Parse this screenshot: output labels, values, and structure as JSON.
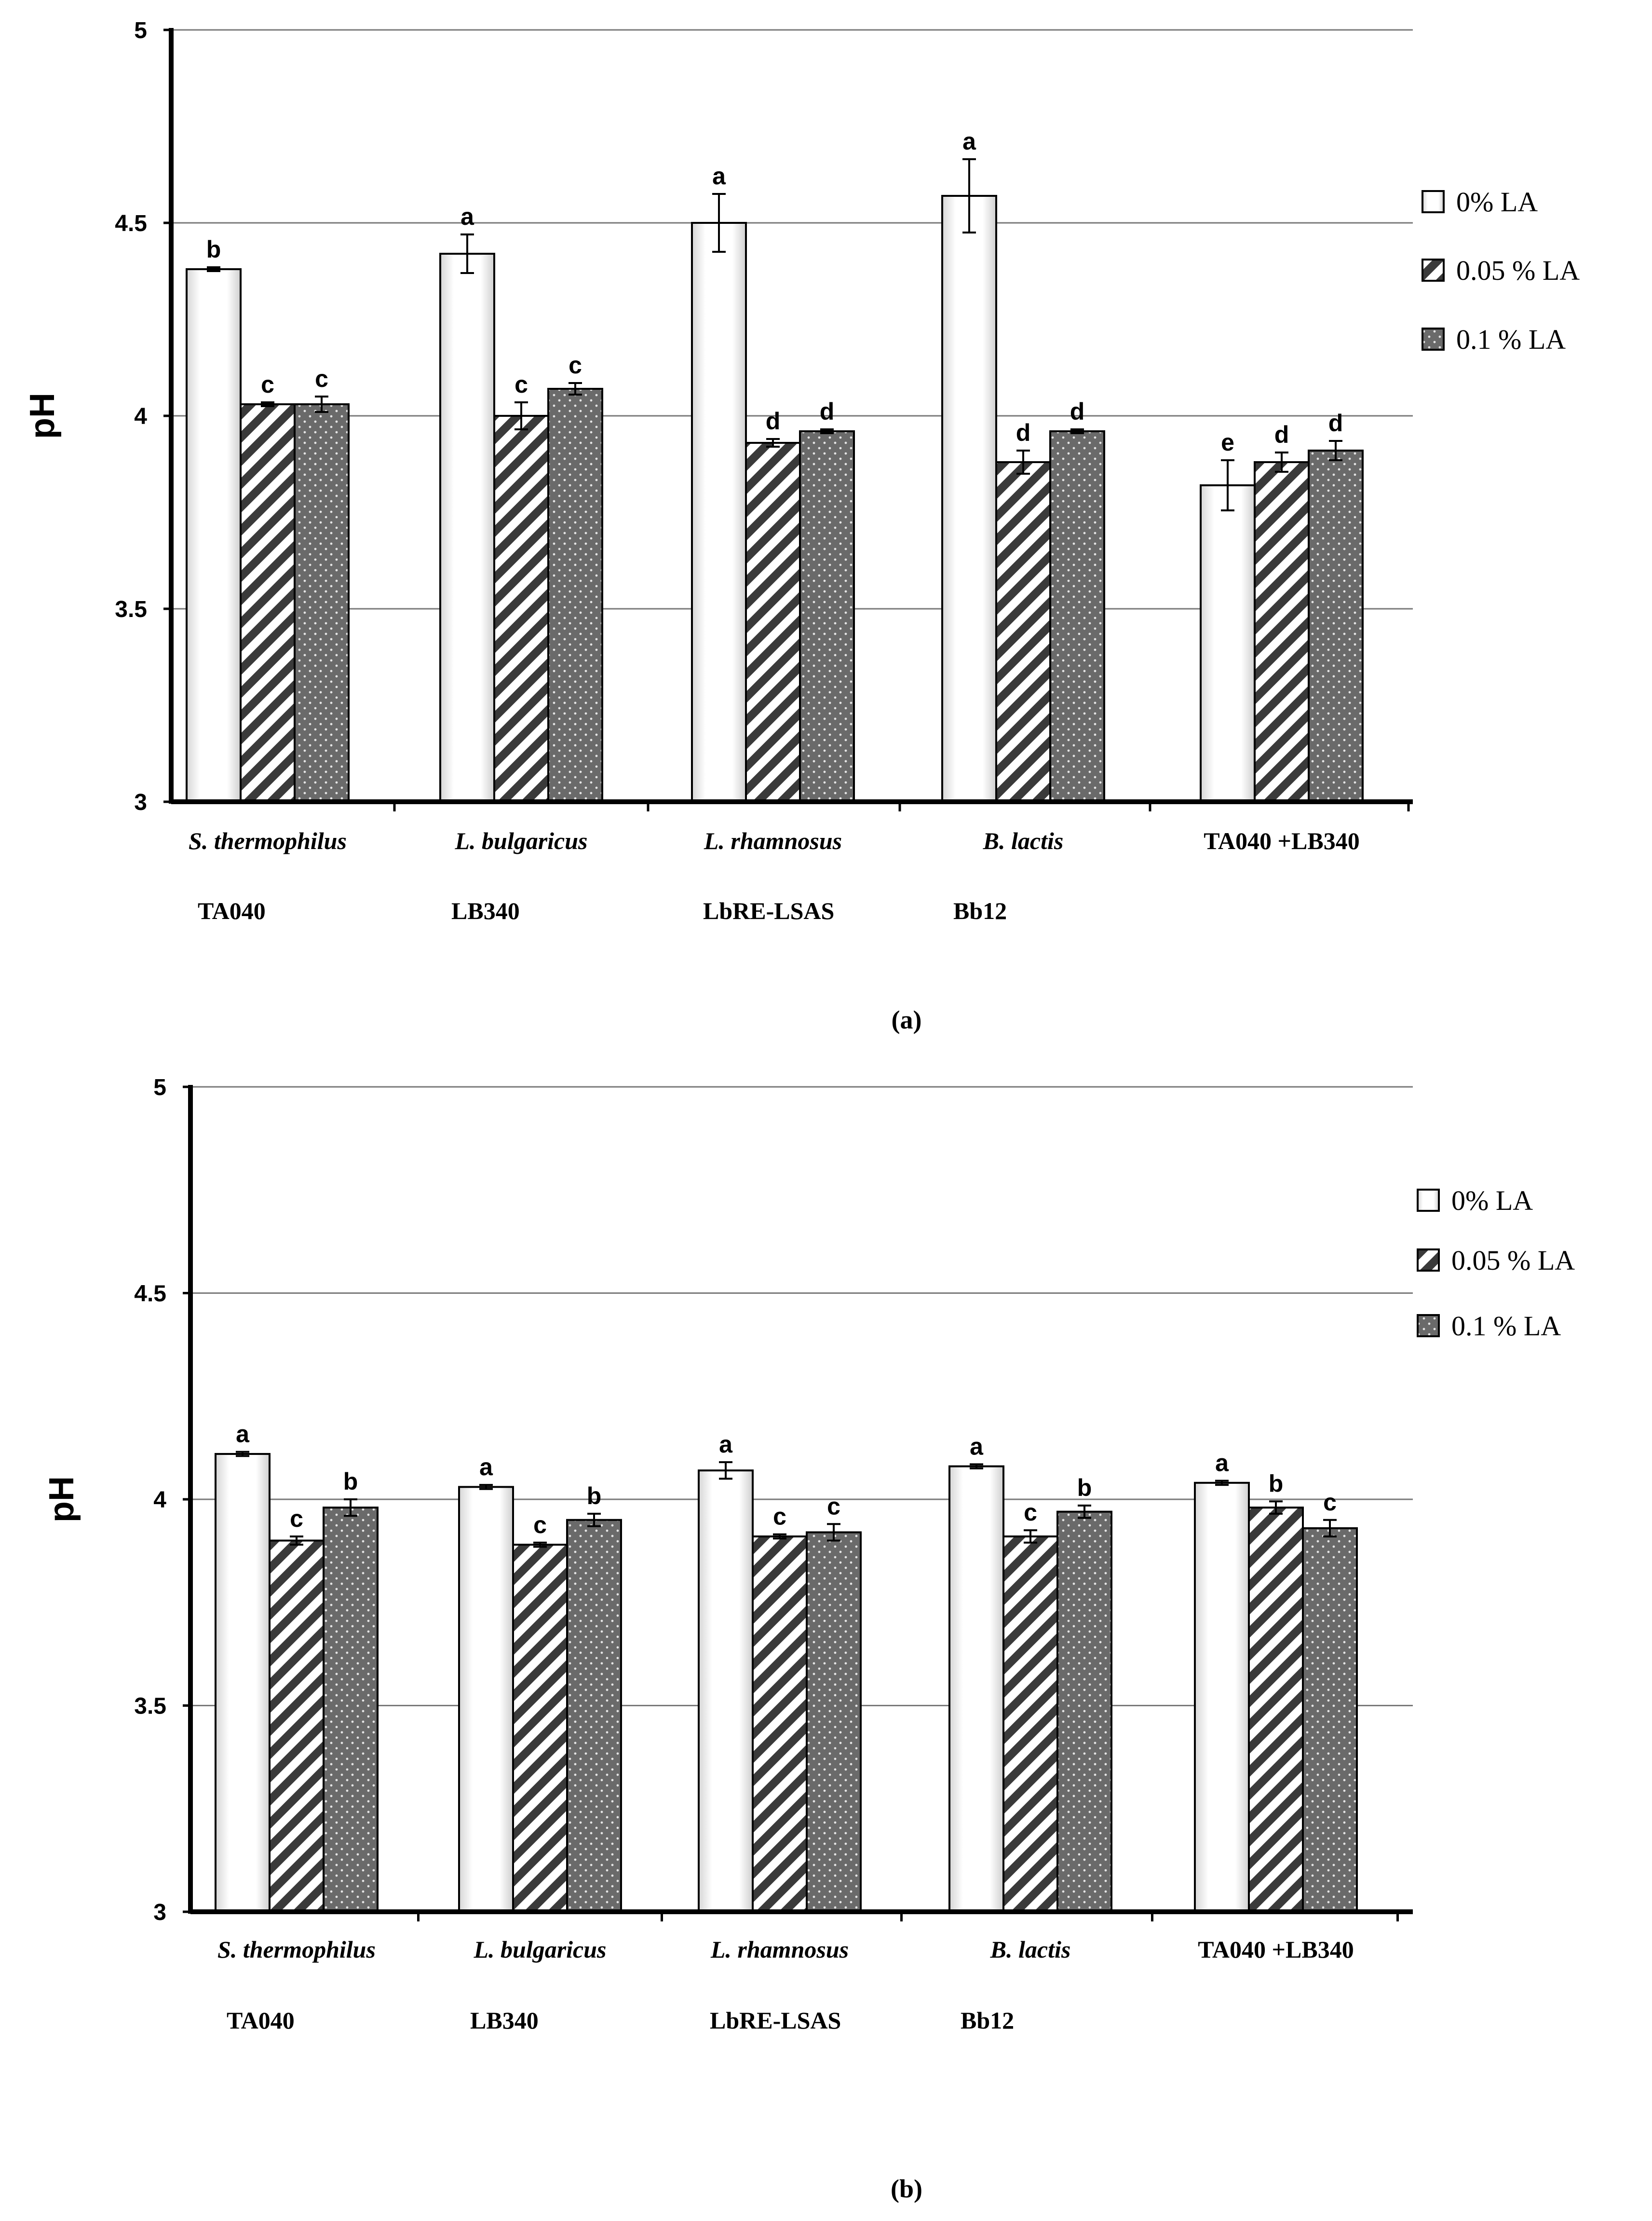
{
  "chart_data": [
    {
      "type": "bar",
      "panel_label": "(a)",
      "ylabel": "pH",
      "ylim": [
        3,
        5
      ],
      "yticks": [
        "3",
        "3.5",
        "4",
        "4.5",
        "5"
      ],
      "grid": true,
      "legend_position": "right",
      "categories": [
        {
          "name": "S. thermophilus",
          "code": "TA040",
          "italic": true
        },
        {
          "name": "L. bulgaricus",
          "code": "LB340",
          "italic": true
        },
        {
          "name": "L. rhamnosus",
          "code": "LbRE-LSAS",
          "italic": true
        },
        {
          "name": "B. lactis",
          "code": "Bb12",
          "italic": true
        },
        {
          "name": "TA040 +LB340",
          "code": "",
          "italic": false
        }
      ],
      "series": [
        {
          "name": "0% LA",
          "pattern": "plain",
          "values": [
            4.38,
            4.42,
            4.5,
            4.57,
            3.82
          ],
          "errors": [
            0.005,
            0.05,
            0.075,
            0.095,
            0.065
          ],
          "letters": [
            "b",
            "a",
            "a",
            "a",
            "e"
          ]
        },
        {
          "name": "0.05 % LA",
          "pattern": "hatch",
          "values": [
            4.03,
            4.0,
            3.93,
            3.88,
            3.88
          ],
          "errors": [
            0.005,
            0.035,
            0.01,
            0.03,
            0.025
          ],
          "letters": [
            "c",
            "c",
            "d",
            "d",
            "d"
          ]
        },
        {
          "name": "0.1 % LA",
          "pattern": "dots",
          "values": [
            4.03,
            4.07,
            3.96,
            3.96,
            3.91
          ],
          "errors": [
            0.02,
            0.015,
            0.005,
            0.005,
            0.025
          ],
          "letters": [
            "c",
            "c",
            "d",
            "d",
            "d"
          ]
        }
      ]
    },
    {
      "type": "bar",
      "panel_label": "(b)",
      "ylabel": "pH",
      "ylim": [
        3,
        5
      ],
      "yticks": [
        "3",
        "3.5",
        "4",
        "4.5",
        "5"
      ],
      "grid": true,
      "legend_position": "right",
      "categories": [
        {
          "name": "S. thermophilus",
          "code": "TA040",
          "italic": true
        },
        {
          "name": "L. bulgaricus",
          "code": "LB340",
          "italic": true
        },
        {
          "name": "L. rhamnosus",
          "code": "LbRE-LSAS",
          "italic": true
        },
        {
          "name": "B. lactis",
          "code": "Bb12",
          "italic": true
        },
        {
          "name": "TA040 +LB340",
          "code": "",
          "italic": false
        }
      ],
      "series": [
        {
          "name": "0% LA",
          "pattern": "plain",
          "values": [
            4.11,
            4.03,
            4.07,
            4.08,
            4.04
          ],
          "errors": [
            0.005,
            0.005,
            0.02,
            0.005,
            0.005
          ],
          "letters": [
            "a",
            "a",
            "a",
            "a",
            "a"
          ]
        },
        {
          "name": "0.05 % LA",
          "pattern": "hatch",
          "values": [
            3.9,
            3.89,
            3.91,
            3.91,
            3.98
          ],
          "errors": [
            0.01,
            0.005,
            0.005,
            0.015,
            0.015
          ],
          "letters": [
            "c",
            "c",
            "c",
            "c",
            "b"
          ]
        },
        {
          "name": "0.1 % LA",
          "pattern": "dots",
          "values": [
            3.98,
            3.95,
            3.92,
            3.97,
            3.93
          ],
          "errors": [
            0.02,
            0.015,
            0.02,
            0.015,
            0.02
          ],
          "letters": [
            "b",
            "b",
            "c",
            "b",
            "c"
          ]
        }
      ]
    }
  ]
}
